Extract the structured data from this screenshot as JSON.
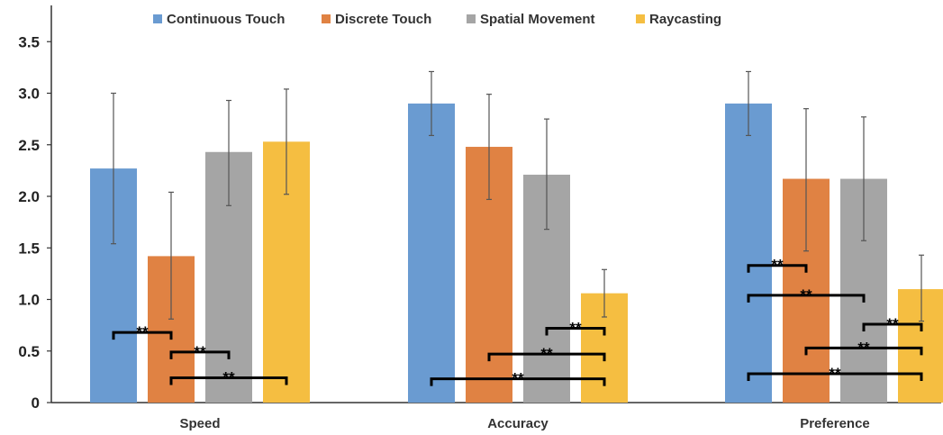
{
  "chart_data": {
    "type": "bar",
    "categories": [
      "Speed",
      "Accuracy",
      "Preference"
    ],
    "ylim": [
      0,
      3.7
    ],
    "yticks": [
      "0",
      "0.5",
      "1.0",
      "1.5",
      "2.0",
      "2.5",
      "3.0",
      "3.5"
    ],
    "ytick_values": [
      0,
      0.5,
      1.0,
      1.5,
      2.0,
      2.5,
      3.0,
      3.5
    ],
    "grid": false,
    "legend_position": "top",
    "series": [
      {
        "name": "Continuous Touch",
        "color": "#6a9bd1",
        "values": [
          2.27,
          2.9,
          2.9
        ],
        "err_low": [
          1.54,
          2.59,
          2.59
        ],
        "err_high": [
          3.0,
          3.21,
          3.21
        ]
      },
      {
        "name": "Discrete Touch",
        "color": "#e08243",
        "values": [
          1.42,
          2.48,
          2.17
        ],
        "err_low": [
          0.81,
          1.97,
          1.47
        ],
        "err_high": [
          2.04,
          2.99,
          2.85
        ]
      },
      {
        "name": "Spatial Movement",
        "color": "#a5a5a5",
        "values": [
          2.43,
          2.21,
          2.17
        ],
        "err_low": [
          1.91,
          1.68,
          1.57
        ],
        "err_high": [
          2.93,
          2.75,
          2.77
        ]
      },
      {
        "name": "Raycasting",
        "color": "#f5be41",
        "values": [
          2.53,
          1.06,
          1.1
        ],
        "err_low": [
          2.02,
          0.83,
          0.79
        ],
        "err_high": [
          3.04,
          1.29,
          1.43
        ]
      }
    ],
    "significance": [
      {
        "category": 0,
        "from": 0,
        "to": 1,
        "level": 0.68,
        "label": "**"
      },
      {
        "category": 0,
        "from": 1,
        "to": 2,
        "level": 0.49,
        "label": "**"
      },
      {
        "category": 0,
        "from": 1,
        "to": 3,
        "level": 0.24,
        "label": "**"
      },
      {
        "category": 1,
        "from": 2,
        "to": 3,
        "level": 0.72,
        "label": "**"
      },
      {
        "category": 1,
        "from": 1,
        "to": 3,
        "level": 0.47,
        "label": "**"
      },
      {
        "category": 1,
        "from": 0,
        "to": 3,
        "level": 0.23,
        "label": "**"
      },
      {
        "category": 2,
        "from": 0,
        "to": 1,
        "level": 1.33,
        "label": "**"
      },
      {
        "category": 2,
        "from": 0,
        "to": 2,
        "level": 1.04,
        "label": "**"
      },
      {
        "category": 2,
        "from": 2,
        "to": 3,
        "level": 0.76,
        "label": "**"
      },
      {
        "category": 2,
        "from": 1,
        "to": 3,
        "level": 0.53,
        "label": "**"
      },
      {
        "category": 2,
        "from": 0,
        "to": 3,
        "level": 0.28,
        "label": "**"
      }
    ]
  }
}
